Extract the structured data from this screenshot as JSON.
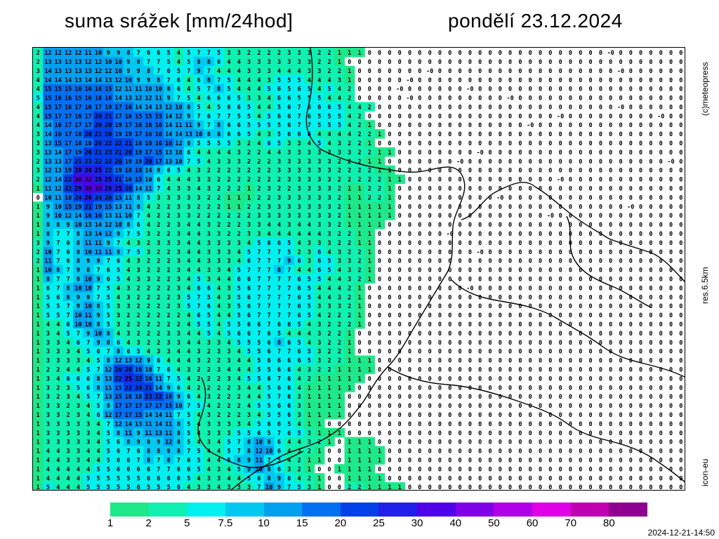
{
  "header": {
    "title": "suma srážek [mm/24hod]",
    "date": "pondělí 23.12.2024"
  },
  "side_labels": {
    "copyright": "(c)meteopress",
    "resolution": "res.6.5km",
    "model": "icon-eu"
  },
  "legend": {
    "ticks": [
      "1",
      "2",
      "5",
      "7.5",
      "10",
      "15",
      "20",
      "25",
      "30",
      "40",
      "50",
      "60",
      "70",
      "80"
    ],
    "colors": [
      "#1ee88a",
      "#10f0b0",
      "#00f0f0",
      "#00c8f0",
      "#00a0f0",
      "#0070f0",
      "#0040e8",
      "#2020e8",
      "#5000e8",
      "#8000e8",
      "#b000e8",
      "#e000e8",
      "#c000b0",
      "#900090"
    ]
  },
  "timestamp": "2024-12-21-14:50",
  "map": {
    "grid_rows": [
      "2 12 12 12 12 11 10 9 9 8 7 6 6 5 4 5 7 7 5 3 3 2 2 2 2 3 3 3 2 2 1 1 1 0 0 0 0 0 0 0 0 0 0 0 0 0 0 0 0 0 0 0 0 0 0 0 0 -0 0 0 0 0 0 0 0",
      "2 13 13 13 13 12 12 10 10 9 8 7 7 5 4 5 8 8 6 4 4 3 3 3 3 3 3 3 2 2 1 0 0 0 0 0 0 0 0 0 0 0 0 0 0 0 0 0 0 0 0 0 0 0 0 0 0 0 0 0 0 0 0 0 0",
      "3 14 13 13 13 13 12 12 10 9 9 8 7 6 5 7 9 7 4 4 4 3 3 3 4 4 4 3 3 2 2 1 0 0 0 0 0 0 0 -0 0 0 0 0 0 0 0 0 0 0 0 0 0 0 0 0 0 0 -0 0 0 0 0 0 0",
      "4 14 14 14 13 14 14 13 12 10 9 9 8 7 6 4 6 8 7 5 4 4 4 3 5 5 5 4 4 4 3 1 0 0 0 0 0 -0 0 0 0 0 0 0 0 0 0 0 0 0 0 0 0 0 0 0 0 0 0 0 0 0 0 0 0",
      "4 15 15 15 16 16 16 15 12 11 11 10 10 8 6 4 5 7 8 5 4 4 4 5 6 5 6 5 4 5 4 2 0 0 0 0 -0 0 0 0 0 0 0 -0 0 0 0 0 0 0 0 0 0 0 0 0 0 0 0 0 0 0 0 0 0",
      "5 15 16 16 15 16 18 16 14 13 12 12 11 9 7 5 4 6 6 6 5 3 3 4 6 6 5 5 5 4 4 2 0 0 0 0 0 -0 0 0 0 0 0 0 0 0 0 -0 0 0 0 0 0 0 0 0 0 0 0 0 0 0 0 0 0",
      "4 15 17 16 17 16 17 19 17 16 14 14 13 12 10 8 5 4 5 6 6 5 4 4 5 6 7 6 6 6 5 4 4 2 0 0 0 0 0 0 0 0 0 0 0 0 0 0 0 0 0 0 0 0 0 0 0 0 -0 0 0 0 0 0 0",
      "4 15 17 17 16 17 20 21 17 16 15 15 15 14 12 9 7 6 7 7 5 5 4 5 6 6 7 6 5 5 5 4 2 0 0 0 0 0 0 0 0 0 0 0 0 0 0 0 0 0 0 0 -0 0 0 0 0 0 0 0 0 0 -0 0 0",
      "4 14 16 17 17 17 20 20 19 17 16 16 16 14 11 11 9 7 8 6 6 5 5 5 5 6 7 7 5 5 5 4 2 1 0 0 0 0 0 0 0 0 0 0 0 0 0 0 0 -0 0 0 0 0 0 0 0 0 0 0 0 0 0 0 0",
      "3 14 16 17 18 20 21 20 19 19 17 16 16 14 14 13 10 8 8 6 6 5 4 3 5 6 6 6 4 4 4 4 2 2 1 0 0 0 0 0 0 0 0 0 0 0 0 0 0 0 0 0 0 0 0 0 0 0 0 0 0 0 0 0 0",
      "3 13 15 17 18 18 20 22 22 21 18 18 16 16 12 8 5 5 5 5 3 2 4 6 5 3 3 4 5 4 3 2 2 1 0 0 0 0 0 0 0 0 0 0 0 0 0 0 0 0 0 0 0 0 0 0 0 0 0 0 0 0 0 0 0",
      "3 13 14 17 19 20 21 23 21 20 19 17 15 13 10 6 4 4 4 4 3 2 2 4 4 3 3 3 3 3 3 3 2 2 1 1 0 0 0 0 0 0 0 0 -0 0 0 0 0 0 0 0 0 0 0 0 0 0 0 0 0 0 0 0 0",
      "2 13 13 17 21 23 22 22 20 19 19 20 17 13 10 7 5 4 3 3 3 2 2 2 3 3 3 3 3 3 2 2 2 1 1 0 0 0 0 0 0 0 -0 0 0 0 0 0 0 0 0 0 0 0 0 0 0 0 0 0 0 0 0 -0 0",
      "3 12 13 19 28 28 25 22 19 18 18 14 9 6 5 4 3 2 2 2 2 2 2 2 3 3 3 3 3 3 2 2 2 2 1 1 0 0 0 0 0 0 0 0 0 0 0 0 0 0 0 0 0 0 0 0 0 0 0 0 0 0 0 0 0",
      "2 12 14 22 30 32 28 25 21 16 15 10 6 4 4 4 3 3 2 2 2 2 2 2 2 3 3 3 3 3 2 2 2 2 2 1 1 0 0 0 0 0 0 0 0 0 0 0 0 0 0 0 -0 0 0 0 0 0 0 0 0 0 0 0 0",
      "1 11 12 22 29 30 33 28 25 20 14 11 7 4 3 3 4 3 2 2 2 1 2 3 2 2 3 3 3 3 2 1 1 2 2 1 0 0 0 0 0 0 0 0 0 0 0 0 0 0 0 0 0 0 0 0 0 0 0 0 0 0 0 0 0",
      "0 10 11 18 24 26 24 20 15 11 8 5 3 3 3 3 3 2 2 1 1 1 2 2 3 3 3 3 3 3 2 1 1 2 2 1 0 0 0 0 0 0 0 0 0 0 -0 0 0 0 0 0 0 0 0 0 0 0 0 0 0 0 0 0 0",
      "1 9 10 15 19 21 19 15 13 11 8 4 2 2 3 3 2 2 2 1 1 2 2 3 3 3 3 3 3 3 2 1 1 1 1 1 0 0 0 0 0 0 0 0 0 0 0 0 0 0 0 0 0 0 0 0 0 0 0 -0 0 0 0 0 0",
      "1 9 10 12 14 16 16 13 11 10 7 4 2 2 3 3 2 2 2 2 2 2 3 3 3 3 3 3 3 3 2 1 1 1 1 1 0 0 0 0 0 0 0 0 0 0 0 0 0 0 0 -0 0 0 0 0 0 0 0 0 0 0 0 0 0",
      "1 8 8 9 10 13 14 12 10 8 6 4 2 2 3 4 4 3 2 2 2 3 3 4 4 3 4 4 3 3 2 1 1 1 1 0 0 0 0 0 0 0 0 0 0 0 0 0 0 0 0 0 0 0 0 0 0 0 0 0 0 0 0 0 0",
      "1 8 7 7 8 13 14 12 9 7 5 3 2 2 3 4 4 3 3 2 2 3 3 4 4 4 4 4 4 3 2 2 1 1 0 0 0 0 0 0 0 -0 0 0 0 0 0 0 0 0 0 0 0 0 0 0 0 0 0 0 0 0 0 0 0",
      "3 9 7 6 8 11 11 9 7 4 3 2 3 3 3 4 4 3 3 3 3 4 5 6 6 5 4 3 3 3 2 2 1 1 0 0 0 0 0 0 0 0 0 0 0 0 0 0 0 0 0 0 0 0 0 0 0 0 0 0 0 0 0 0 0",
      "2 10 7 6 8 10 11 11 8 7 5 3 2 2 3 4 4 3 3 3 4 5 7 7 7 5 2 3 6 4 3 2 2 1 0 0 0 0 0 0 0 0 0 0 -0 0 0 0 0 0 0 0 0 0 0 0 0 0 0 0 0 0 0 0 0",
      "2 11 7 6 8 9 9 7 6 4 3 2 2 2 3 4 4 3 3 3 4 6 7 7 7 9 6 3 6 5 3 3 2 1 0 0 0 0 0 0 0 0 0 0 0 0 0 0 0 0 0 0 0 0 0 0 0 0 0 0 0 0 0 0 0",
      "1 10 8 7 9 8 7 6 5 4 3 2 2 2 3 4 4 3 3 4 5 7 7 7 8 7 4 4 6 5 4 3 2 1 0 0 0 0 0 0 0 0 0 0 0 0 0 0 0 0 0 0 0 0 0 0 0 0 0 0 0 0 0 0 0",
      "1 8 7 7 8 10 9 6 5 4 3 3 2 2 3 4 5 3 4 4 6 6 7 7 7 7 6 5 5 4 4 3 2 1 0 0 0 0 0 0 0 0 0 0 0 0 0 0 0 0 0 0 0 0 0 0 0 0 0 0 0 0 0 0 0",
      "1 6 7 8 10 10 7 5 4 3 2 2 2 2 3 4 6 6 4 3 5 6 7 7 7 7 6 5 4 4 4 2 1 0 0 0 0 0 0 0 0 0 0 -0 0 0 0 0 0 0 0 0 0 0 0 0 0 0 0 0 0 0 0 0 0",
      "1 5 6 8 9 9 7 5 4 3 2 2 2 2 3 5 7 5 4 3 5 6 7 7 7 7 6 5 4 4 3 2 1 0 0 0 0 0 0 0 0 0 0 0 0 0 0 0 0 0 0 0 0 0 0 0 0 0 0 0 0 0 0 0 0",
      "1 5 5 7 9 10 8 5 3 3 2 2 2 2 3 5 7 6 4 3 5 6 7 7 7 7 6 5 3 3 3 2 1 0 0 0 0 0 0 0 0 0 0 0 0 0 0 0 0 0 0 0 0 0 0 0 0 0 0 0 0 0 0 0 0",
      "1 5 5 7 10 11 9 5 3 2 2 2 2 2 2 4 6 5 4 4 5 6 7 7 7 7 6 5 4 2 2 2 1 0 0 0 0 0 0 0 0 0 0 0 0 0 0 0 0 0 0 0 0 0 0 0 0 0 0 0 0 0 0 0 0",
      "1 4 4 6 10 10 8 5 3 2 2 2 2 2 2 4 5 5 4 5 5 6 6 7 6 6 5 4 3 2 2 2 1 0 0 0 0 0 0 0 0 0 0 0 0 0 0 0 0 0 0 0 0 0 0 0 0 0 0 0 0 0 0 0 0",
      "1 3 4 5 7 9 10 8 4 3 2 2 2 3 3 4 4 5 4 5 6 6 7 6 5 4 4 4 3 2 2 1 0 0 0 0 0 0 0 0 0 0 0 0 0 0 0 0 0 0 0 0 0 0 0 0 0 0 0 0 0 0 0 0 0",
      "1 3 3 4 6 7 9 8 6 4 3 2 2 3 3 4 4 3 3 4 5 5 5 6 8 6 5 4 3 2 2 1 0 0 0 0 0 0 0 0 0 0 0 0 0 0 0 0 0 0 0 0 0 0 0 0 0 0 0 0 0 0 0 0 0",
      "1 3 3 3 4 5 6 7 8 6 5 4 3 3 4 4 3 2 3 3 4 5 5 6 7 7 6 5 3 2 2 1 0 0 0 0 0 0 0 0 0 0 0 0 0 0 0 0 0 0 0 0 0 0 0 0 0 0 0 0 0 0 0 0 0",
      "1 3 3 3 3 4 5 8 12 13 12 9 6 4 4 4 3 2 2 3 4 4 5 6 6 6 6 5 3 2 2 1 1 1 0 0 0 0 0 0 0 0 0 0 0 0 0 0 0 0 0 0 0 0 0 0 0 0 0 0 0 0 0 0 0",
      "1 2 2 4 4 5 7 12 20 20 16 10 7 6 4 3 2 2 3 4 4 4 5 5 6 6 4 3 2 2 1 1 1 1 0 0 0 0 0 0 0 0 0 0 0 0 0 0 0 0 0 0 0 0 0 0 0 0 0 0 0 0 0 0 0",
      "1 3 4 6 6 6 8 13 22 25 22 16 11 7 5 4 2 2 2 3 4 5 5 6 7 6 4 2 1 1 1 1 1 0 0 0 0 0 0 0 0 0 0 0 0 0 0 0 0 0 0 0 0 0 0 0 0 0 0 0 0 0 0 0 0",
      "1 3 2 3 5 6 8 11 15 22 24 21 14 9 6 4 2 2 2 2 3 4 4 5 6 6 4 1 1 1 1 1 0 0 0 0 0 0 0 0 0 0 0 0 0 0 0 0 0 0 0 0 0 0 0 0 0 0 0 0 0 0 0 0 0",
      "1 3 2 3 4 5 7 13 15 16 18 23 22 16 9 6 4 3 2 2 2 4 4 5 7 6 3 1 1 1 1 0 0 0 0 0 0 0 0 0 0 0 0 0 0 0 0 0 0 0 0 0 0 0 0 0 0 0 0 0 0 0 0 0 0",
      "1 3 3 2 3 4 5 8 17 17 17 17 17 15 10 7 5 4 2 2 2 4 5 5 6 6 3 1 1 1 1 0 0 0 0 0 0 0 0 0 0 0 0 0 0 0 0 0 0 0 0 0 0 0 0 0 0 0 0 0 0 0 0 0 0",
      "1 3 3 2 3 4 6 12 17 17 15 14 14 11 7 5 4 3 2 2 2 3 4 5 5 6 3 1 1 1 1 0 0 0 0 0 0 0 0 0 0 0 0 0 0 0 0 0 0 0 0 0 0 0 0 0 0 0 0 0 0 0 0 0 0",
      "1 3 3 3 3 3 4 7 12 14 13 11 14 11 8 5 4 3 3 3 3 4 5 6 6 5 4 1 1 0 0 0 0 0 0 0 0 0 0 0 0 0 0 0 0 0 0 0 0 0 0 0 0 0 0 0 0 0 0 0 0 0 0 0 0",
      "1 3 3 3 3 3 4 5 8 11 9 11 13 11 8 5 4 3 3 3 5 5 6 5 7 6 5 3 1 1 1 0 0 0 0 0 0 0 0 0 0 0 0 0 0 0 0 0 0 0 0 0 0 0 0 0 0 0 0 0 0 0 0 0 0",
      "1 3 3 3 3 3 4 5 6 8 9 8 9 12 8 5 4 3 4 5 7 8 10 8 6 4 4 3 2 1 0 1 1 1 0 0 0 0 0 0 0 0 0 0 0 0 0 0 0 0 0 0 0 0 0 0 0 0 0 0 0 0 0 0 0",
      "1 4 4 3 3 4 4 5 6 7 6 8 8 9 8 7 5 4 4 5 7 8 12 10 6 4 3 2 1 0 0 1 1 1 1 0 0 0 0 0 0 0 0 0 0 0 0 0 0 0 0 0 0 0 0 0 0 0 0 0 0 0 0 0 0",
      "1 4 4 3 3 4 4 5 6 6 7 8 7 8 7 6 5 4 4 5 8 9 11 7 5 4 2 1 1 0 0 1 1 1 1 0 0 0 0 0 0 0 0 0 0 0 0 0 0 0 0 0 0 0 0 0 0 0 0 0 0 0 0 0 0",
      "1 4 4 4 4 4 5 5 6 6 6 6 7 7 6 6 5 4 3 4 5 9 10 8 6 3 2 1 0 0 1 1 1 1 0 0 0 0 0 0 0 0 0 0 0 0 0 0 0 0 0 0 0 0 0 0 0 0 0 0 0 0 0 0 0",
      "1 4 4 4 4 5 5 5 5 5 5 6 6 6 6 5 4 3 3 4 4 5 6 8 9 6 4 2 1 0 0 1 1 1 1 0 0 0 0 0 0 0 0 0 0 0 0 0 0 0 0 0 0 0 0 0 0 0 0 0 0 0 0 0 0",
      "1 5 4 4 4 5 5 5 5 5 6 5 5 5 6 4 3 3 4 3 3 3 7 10 9 7 5 3 1 0 0 2 2 1 1 1 1 0 0 0 0 0 0 0 0 0 0 0 0 0 0 0 0 0 0 0 0 0 0 0 0 0 0 0 0"
    ]
  }
}
